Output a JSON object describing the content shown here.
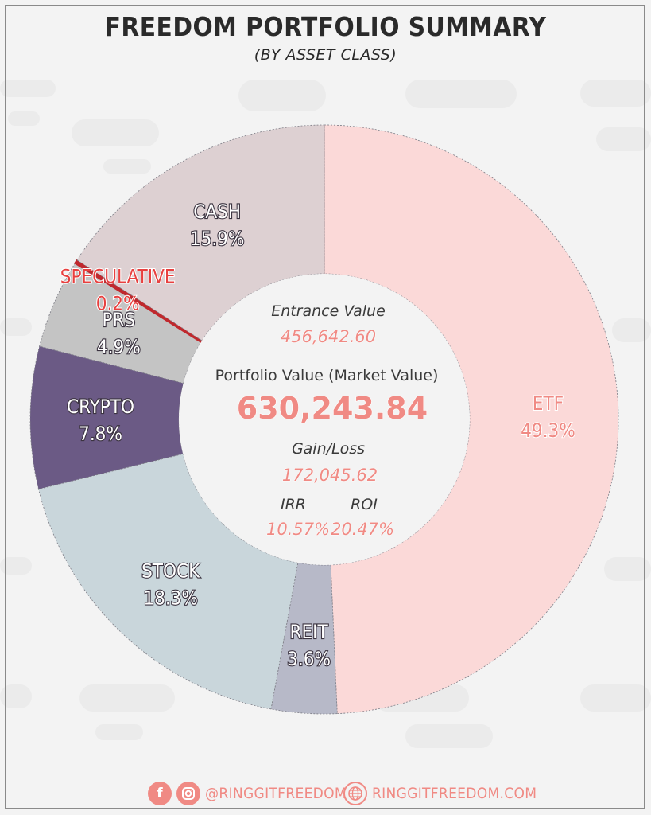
{
  "header": {
    "title": "FREEDOM PORTFOLIO SUMMARY",
    "subtitle": "(BY ASSET CLASS)"
  },
  "center": {
    "entrance_label": "Entrance Value",
    "entrance_value": "456,642.60",
    "portfolio_label": "Portfolio Value (Market Value)",
    "portfolio_value": "630,243.84",
    "gain_label": "Gain/Loss",
    "gain_value": "172,045.62",
    "irr_label": "IRR",
    "irr_value": "10.57%",
    "roi_label": "ROI",
    "roi_value": "20.47%"
  },
  "chart_data": {
    "type": "pie",
    "title": "FREEDOM PORTFOLIO SUMMARY",
    "subtitle": "(BY ASSET CLASS)",
    "categories": [
      "ETF",
      "REIT",
      "STOCK",
      "CRYPTO",
      "PRS",
      "SPECULATIVE",
      "CASH"
    ],
    "values": [
      49.3,
      3.6,
      18.3,
      7.8,
      4.9,
      0.2,
      15.9
    ],
    "labels": [
      "49.3%",
      "3.6%",
      "18.3%",
      "7.8%",
      "4.9%",
      "0.2%",
      "15.9%"
    ],
    "colors": [
      "#fbd9d8",
      "#b7b9c8",
      "#c9d6db",
      "#6b5a85",
      "#c4c4c4",
      "#c0282d",
      "#ddd0d2"
    ],
    "label_colors": [
      "#f08a84",
      "#ffffff",
      "#ffffff",
      "#ffffff",
      "#ffffff",
      "#e8403f",
      "#ffffff"
    ],
    "donut": true
  },
  "footer": {
    "social_handle": "@RINGGITFREEDOM",
    "website": "RINGGITFREEDOM.COM",
    "accent": "#f08a84"
  }
}
